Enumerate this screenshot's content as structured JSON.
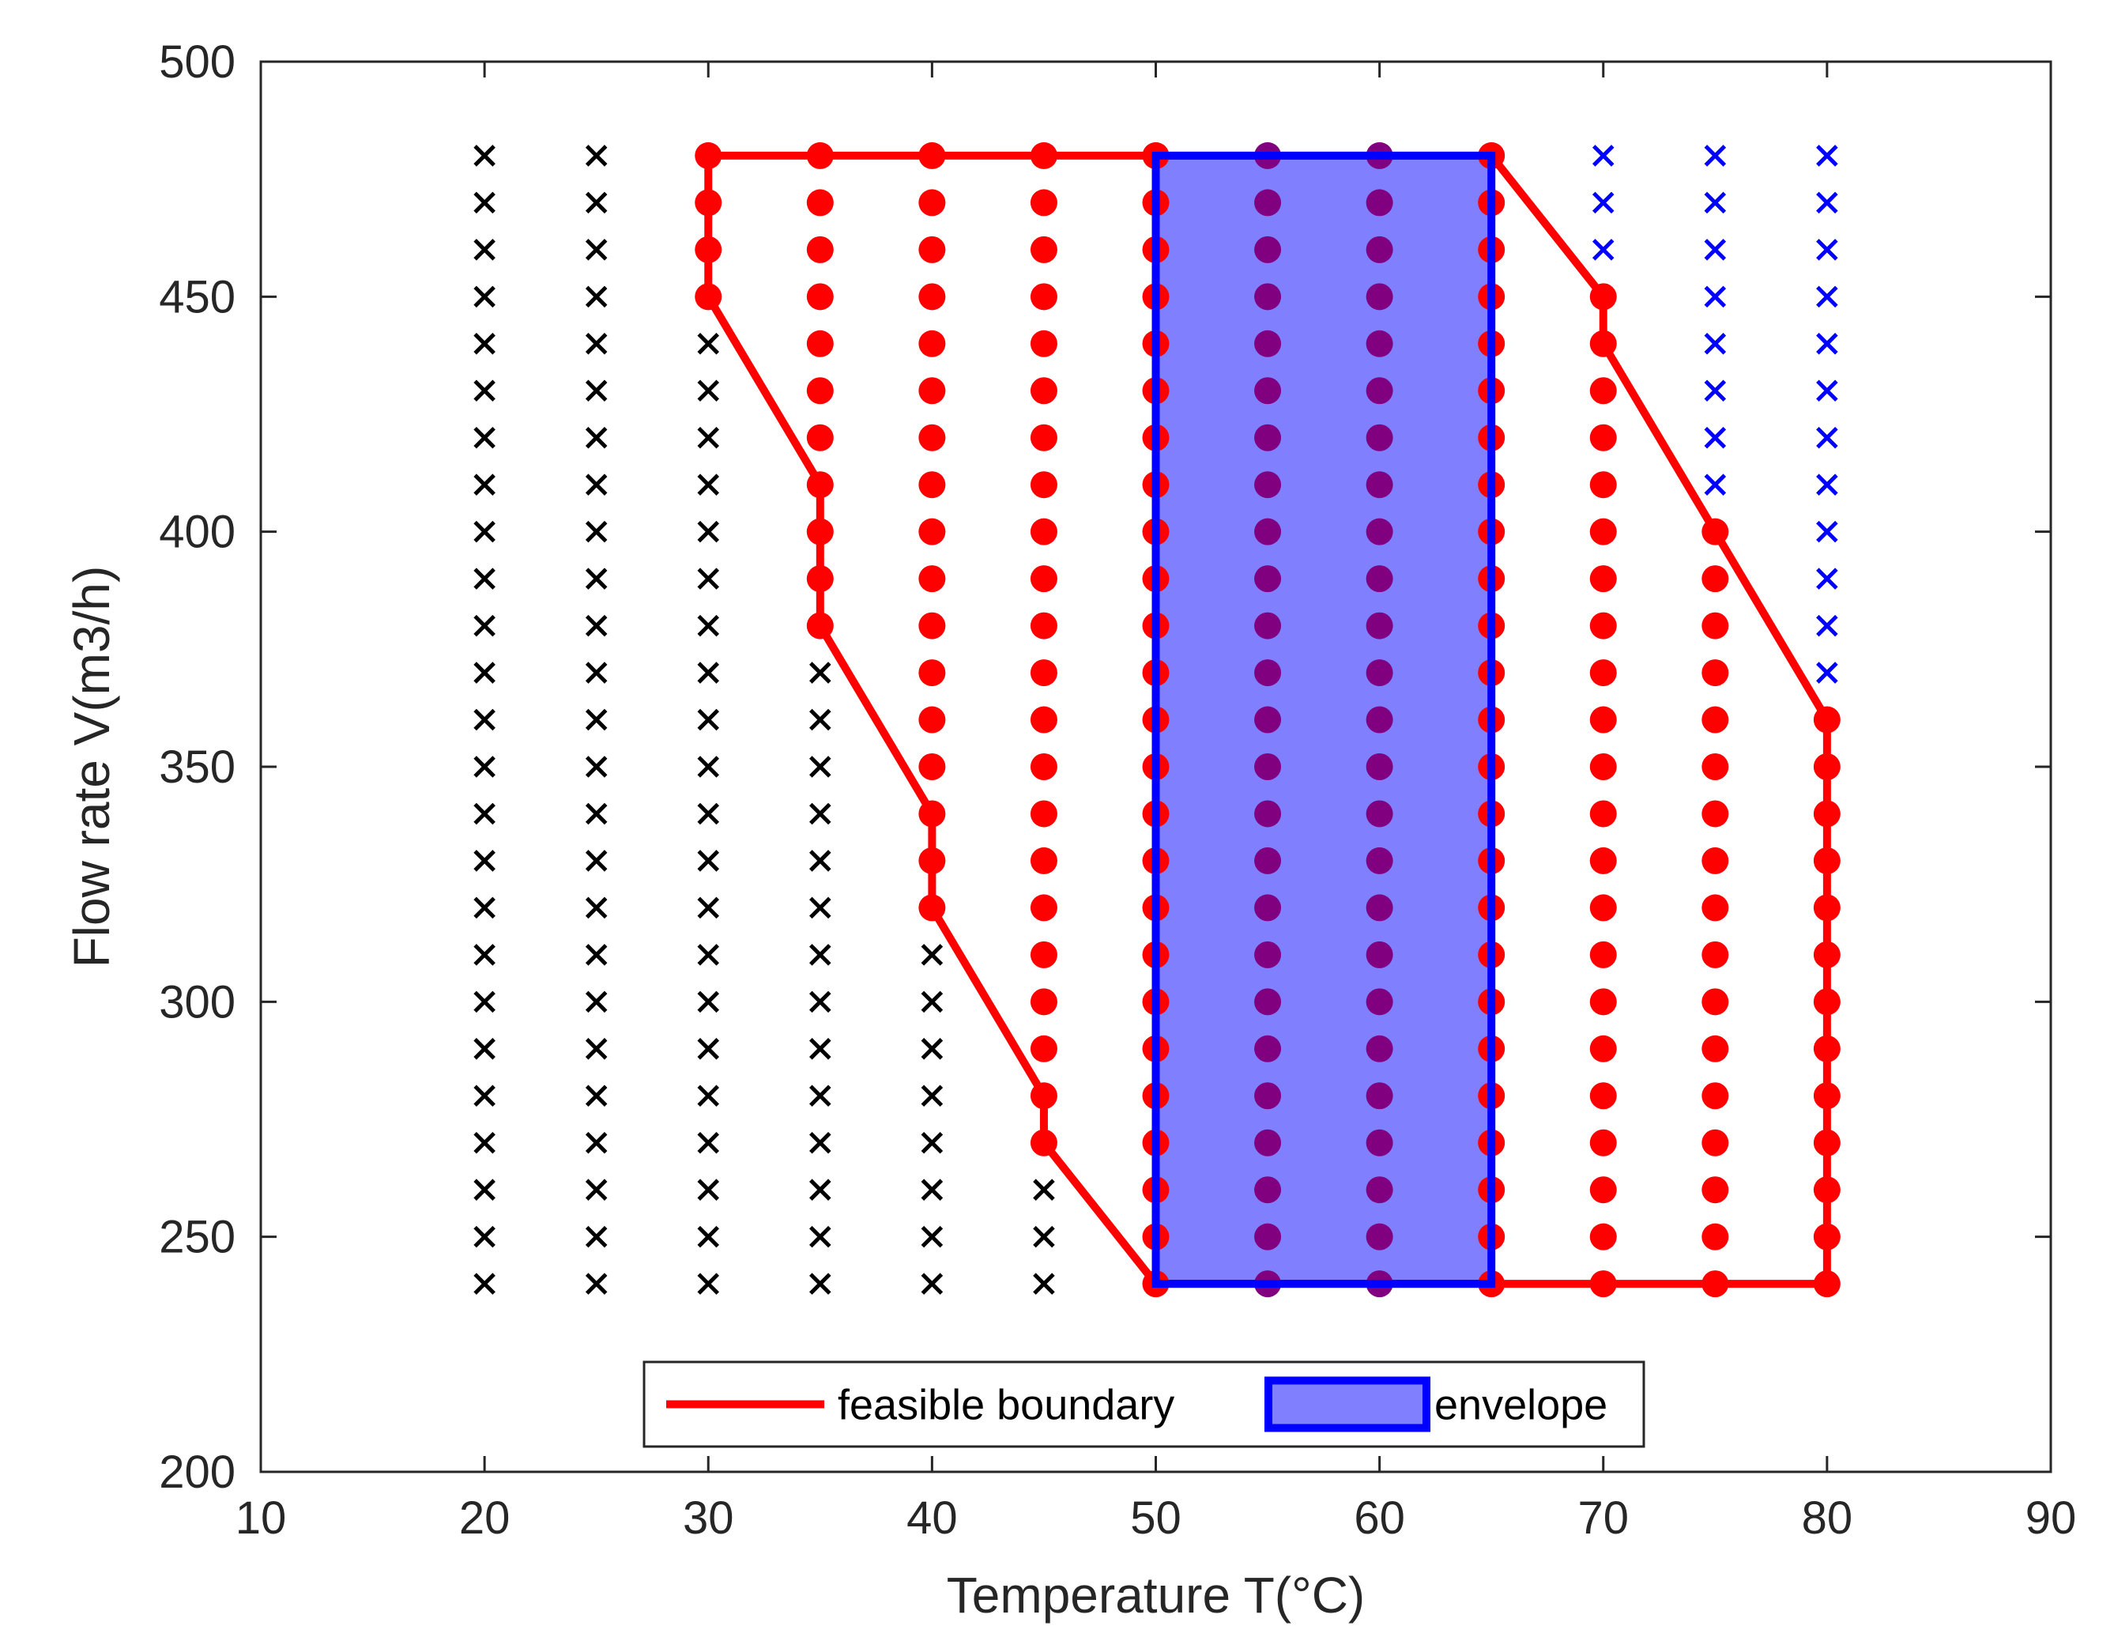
{
  "chart_data": {
    "type": "scatter",
    "title": "",
    "xlabel": "Temperature T(°C)",
    "ylabel": "Flow rate V(m3/h)",
    "xlim": [
      10,
      90
    ],
    "ylim": [
      200,
      500
    ],
    "xticks": [
      10,
      20,
      30,
      40,
      50,
      60,
      70,
      80,
      90
    ],
    "yticks": [
      200,
      250,
      300,
      350,
      400,
      450,
      500
    ],
    "grid_x": [
      20,
      25,
      30,
      35,
      40,
      45,
      50,
      55,
      60,
      65,
      70,
      75,
      80
    ],
    "flow_min": 240,
    "flow_max": 480,
    "flow_step": 10,
    "infeasible_black": [
      {
        "x": 20,
        "y_min": 240,
        "y_max": 480
      },
      {
        "x": 25,
        "y_min": 240,
        "y_max": 480
      },
      {
        "x": 30,
        "y_min": 240,
        "y_max": 440
      },
      {
        "x": 35,
        "y_min": 240,
        "y_max": 370
      },
      {
        "x": 40,
        "y_min": 240,
        "y_max": 310
      },
      {
        "x": 45,
        "y_min": 240,
        "y_max": 260
      }
    ],
    "infeasible_blue": [
      {
        "x": 70,
        "y_min": 460,
        "y_max": 480
      },
      {
        "x": 75,
        "y_min": 410,
        "y_max": 480
      },
      {
        "x": 80,
        "y_min": 370,
        "y_max": 480
      }
    ],
    "feasible": [
      {
        "x": 30,
        "y_min": 450,
        "y_max": 480
      },
      {
        "x": 35,
        "y_min": 380,
        "y_max": 480
      },
      {
        "x": 40,
        "y_min": 320,
        "y_max": 480
      },
      {
        "x": 45,
        "y_min": 270,
        "y_max": 480
      },
      {
        "x": 50,
        "y_min": 240,
        "y_max": 480
      },
      {
        "x": 55,
        "y_min": 240,
        "y_max": 480
      },
      {
        "x": 60,
        "y_min": 240,
        "y_max": 480
      },
      {
        "x": 65,
        "y_min": 240,
        "y_max": 480
      },
      {
        "x": 70,
        "y_min": 240,
        "y_max": 450
      },
      {
        "x": 75,
        "y_min": 240,
        "y_max": 400
      },
      {
        "x": 80,
        "y_min": 240,
        "y_max": 360
      }
    ],
    "feasible_boundary": [
      [
        30,
        480
      ],
      [
        65,
        480
      ],
      [
        70,
        450
      ],
      [
        70,
        440
      ],
      [
        75,
        400
      ],
      [
        80,
        360
      ],
      [
        80,
        240
      ],
      [
        50,
        240
      ],
      [
        45,
        270
      ],
      [
        45,
        280
      ],
      [
        40,
        320
      ],
      [
        40,
        340
      ],
      [
        35,
        380
      ],
      [
        35,
        410
      ],
      [
        30,
        450
      ],
      [
        30,
        480
      ]
    ],
    "envelope": {
      "x_min": 50,
      "x_max": 65,
      "y_min": 240,
      "y_max": 480
    },
    "legend": {
      "placement": "bottom-center",
      "entries": [
        {
          "label": "feasible boundary",
          "kind": "line",
          "color": "#ff0000"
        },
        {
          "label": "envelope",
          "kind": "patch",
          "fill": "#8080ff",
          "edge": "#0000ff"
        }
      ]
    },
    "colors": {
      "feasible_point": "#ff0000",
      "inside_envelope_point": "#800080",
      "infeasible_low": "#000000",
      "infeasible_high": "#0000ff",
      "boundary": "#ff0000",
      "envelope_fill": "#8080ff",
      "envelope_edge": "#0000ff",
      "axis": "#262626"
    }
  }
}
